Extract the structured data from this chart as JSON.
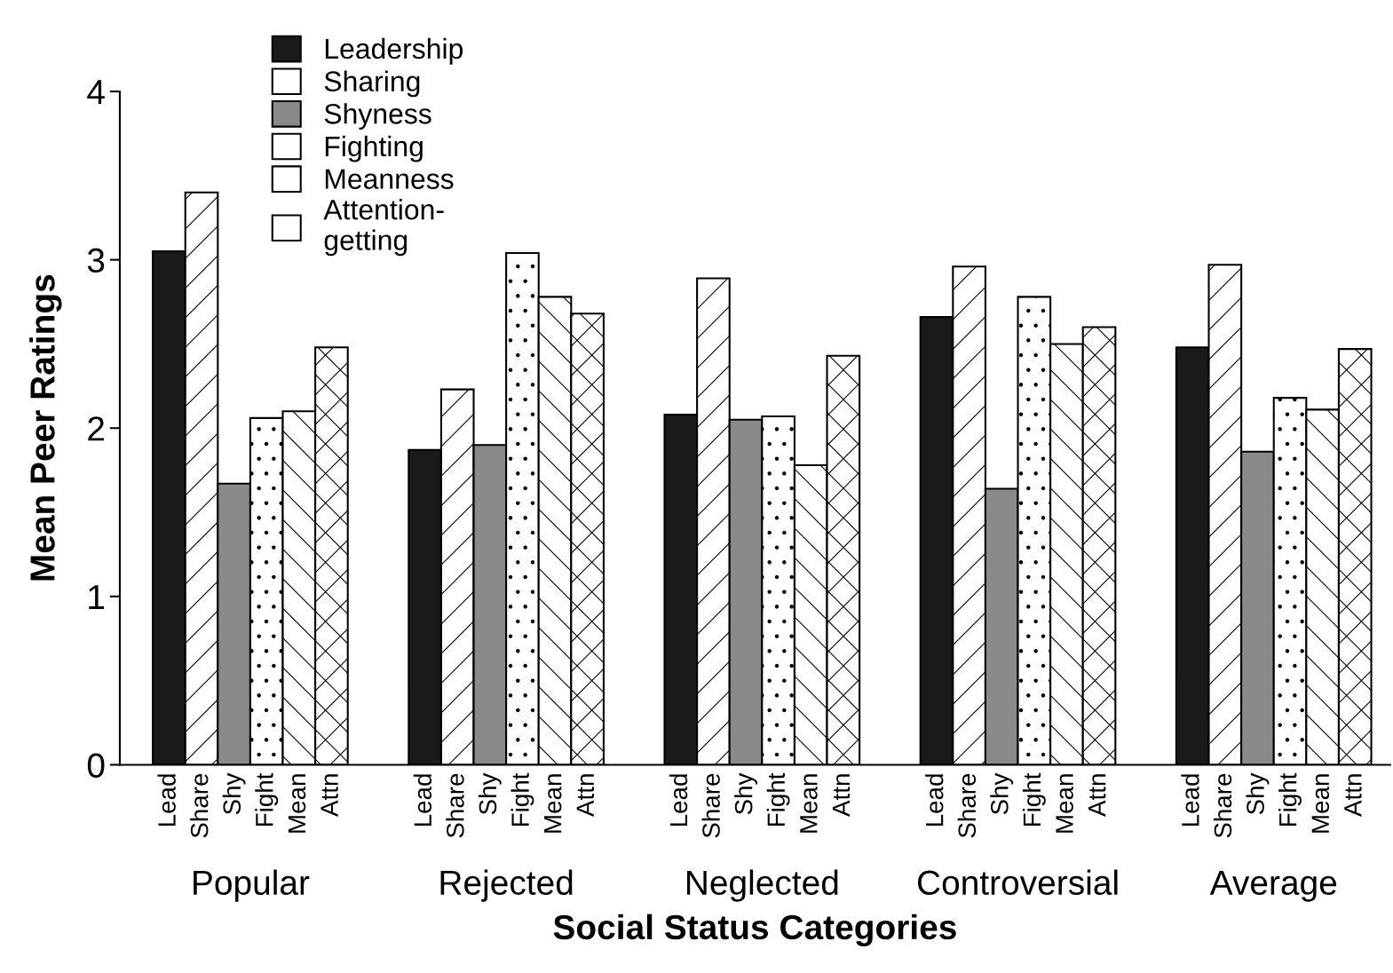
{
  "chart_data": {
    "type": "bar",
    "xlabel": "Social Status Categories",
    "ylabel": "Mean Peer Ratings",
    "categories": [
      "Popular",
      "Rejected",
      "Neglected",
      "Controversial",
      "Average"
    ],
    "series": [
      {
        "name": "Leadership",
        "color": "#1a1a1a",
        "values": [
          3.05,
          1.87,
          2.08,
          2.66,
          2.48
        ]
      },
      {
        "name": "Sharing",
        "color": "#ffffff",
        "values": [
          3.4,
          2.23,
          2.89,
          2.96,
          2.97
        ]
      },
      {
        "name": "Shyness",
        "color": "#8a8a8a",
        "values": [
          1.67,
          1.9,
          2.05,
          1.64,
          1.86
        ]
      },
      {
        "name": "Fighting",
        "color": "#ffffff",
        "values": [
          2.06,
          3.04,
          2.07,
          2.78,
          2.18
        ]
      },
      {
        "name": "Meanness",
        "color": "#ffffff",
        "values": [
          2.1,
          2.78,
          1.78,
          2.5,
          2.11
        ]
      },
      {
        "name": "Attention-\ngetting",
        "color": "#ffffff",
        "values": [
          2.48,
          2.68,
          2.43,
          2.6,
          2.47
        ]
      }
    ],
    "annotations": [
      "Lead",
      "Share",
      "Shy",
      "Fight",
      "Mean",
      "Attn",
      "Lead",
      "Share",
      "Shy",
      "Fight",
      "Mean",
      "Attn",
      "Lead",
      "Share",
      "Shy",
      "Fight",
      "Mean",
      "Attn",
      "Lead",
      "Share",
      "Shy",
      "Fight",
      "Mean",
      "Attn",
      "Lead",
      "Share",
      "Shy",
      "Fight",
      "Mean",
      "Attn"
    ],
    "ylim": [
      0,
      4
    ],
    "yticks": [
      0,
      1,
      2,
      3,
      4
    ],
    "grid": false,
    "legend": "top left"
  }
}
